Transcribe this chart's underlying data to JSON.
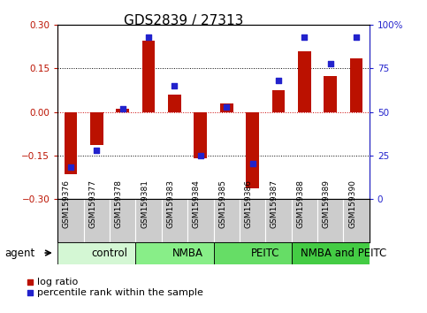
{
  "title": "GDS2839 / 27313",
  "samples": [
    "GSM159376",
    "GSM159377",
    "GSM159378",
    "GSM159381",
    "GSM159383",
    "GSM159384",
    "GSM159385",
    "GSM159386",
    "GSM159387",
    "GSM159388",
    "GSM159389",
    "GSM159390"
  ],
  "log_ratio": [
    -0.215,
    -0.115,
    0.01,
    0.245,
    0.06,
    -0.16,
    0.03,
    -0.265,
    0.075,
    0.21,
    0.125,
    0.185
  ],
  "percentile_rank": [
    18,
    28,
    52,
    93,
    65,
    25,
    53,
    20,
    68,
    93,
    78,
    93
  ],
  "groups": [
    {
      "label": "control",
      "start": 0,
      "end": 3,
      "color": "#d4f7d4"
    },
    {
      "label": "NMBA",
      "start": 3,
      "end": 6,
      "color": "#88ee88"
    },
    {
      "label": "PEITC",
      "start": 6,
      "end": 9,
      "color": "#66dd66"
    },
    {
      "label": "NMBA and PEITC",
      "start": 9,
      "end": 12,
      "color": "#44cc44"
    }
  ],
  "bar_color_red": "#bb1100",
  "dot_color_blue": "#2222cc",
  "ylim_left": [
    -0.3,
    0.3
  ],
  "ylim_right": [
    0,
    100
  ],
  "yticks_left": [
    -0.3,
    -0.15,
    0,
    0.15,
    0.3
  ],
  "yticks_right": [
    0,
    25,
    50,
    75,
    100
  ],
  "ytick_labels_right": [
    "0",
    "25",
    "50",
    "75",
    "100%"
  ],
  "hlines": [
    -0.15,
    0.0,
    0.15
  ],
  "hline_colors": [
    "black",
    "#cc0000",
    "black"
  ],
  "hline_styles": [
    "dotted",
    "dotted",
    "dotted"
  ],
  "legend_log_ratio": "log ratio",
  "legend_percentile": "percentile rank within the sample",
  "agent_label": "agent",
  "title_fontsize": 11,
  "tick_fontsize": 7.5,
  "sample_fontsize": 6.5,
  "group_label_fontsize": 8.5,
  "legend_fontsize": 8
}
